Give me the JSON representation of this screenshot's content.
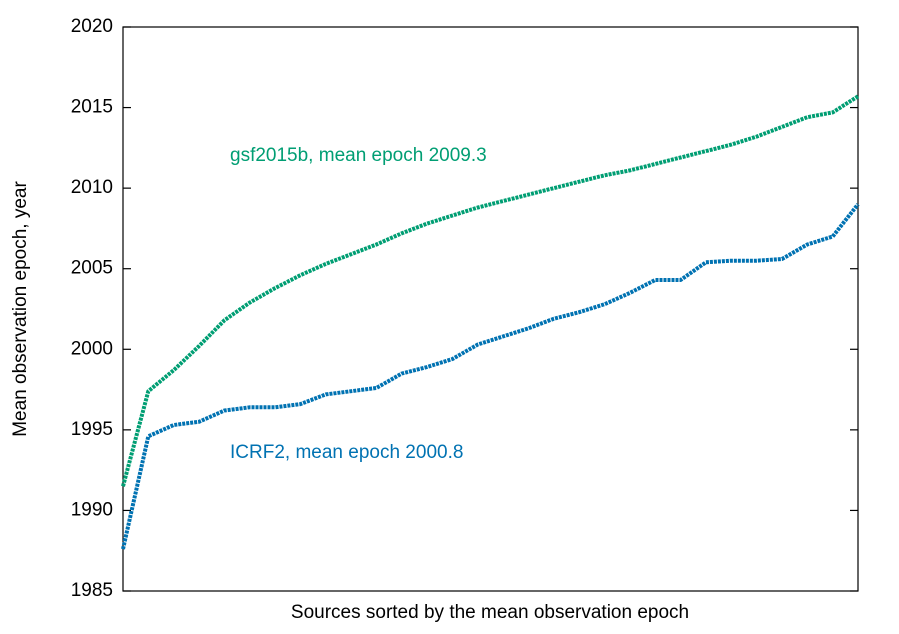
{
  "chart_data": {
    "type": "line",
    "ylabel": "Mean observation epoch, year",
    "xlabel": "Sources sorted by the mean observation epoch",
    "ylim": [
      1985,
      2020
    ],
    "yticks": [
      1985,
      1990,
      1995,
      2000,
      2005,
      2010,
      2015,
      2020
    ],
    "series": [
      {
        "color": "#009e73",
        "values": [
          1991.5,
          1997.4,
          1998.7,
          2000.2,
          2001.8,
          2002.9,
          2003.8,
          2004.6,
          2005.3,
          2005.9,
          2006.5,
          2007.2,
          2007.8,
          2008.3,
          2008.8,
          2009.2,
          2009.6,
          2010.0,
          2010.4,
          2010.8,
          2011.1,
          2011.5,
          2011.9,
          2012.3,
          2012.7,
          2013.2,
          2013.8,
          2014.4,
          2014.7,
          2015.7
        ]
      },
      {
        "color": "#0072b2",
        "values": [
          1987.6,
          1994.6,
          1995.3,
          1995.5,
          1996.2,
          1996.4,
          1996.4,
          1996.6,
          1997.2,
          1997.4,
          1997.6,
          1998.5,
          1998.9,
          1999.4,
          2000.3,
          2000.8,
          2001.3,
          2001.9,
          2002.3,
          2002.8,
          2003.5,
          2004.3,
          2004.3,
          2005.4,
          2005.5,
          2005.5,
          2005.6,
          2006.5,
          2007.0,
          2009.0
        ]
      }
    ],
    "annotations": [
      {
        "text": "gsf2015b, mean epoch 2009.3",
        "color": "#009e73"
      },
      {
        "text": "ICRF2, mean epoch 2000.8",
        "color": "#0072b2"
      }
    ]
  }
}
